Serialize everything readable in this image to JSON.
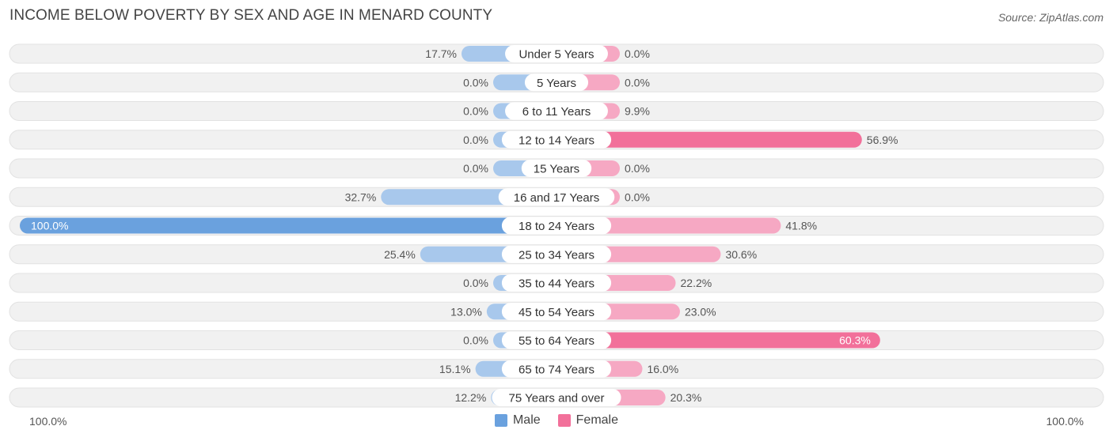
{
  "header": {
    "title": "INCOME BELOW POVERTY BY SEX AND AGE IN MENARD COUNTY",
    "source": "Source: ZipAtlas.com"
  },
  "axis": {
    "left_label": "100.0%",
    "right_label": "100.0%"
  },
  "legend": {
    "male_label": "Male",
    "female_label": "Female"
  },
  "colors": {
    "male_strong": "#6aa1de",
    "male_light": "#a8c8ec",
    "female_strong": "#f2709a",
    "female_light": "#f6a8c3",
    "row_bg": "#efefef"
  },
  "chart_data": {
    "type": "bar",
    "orientation": "horizontal-diverging",
    "title": "INCOME BELOW POVERTY BY SEX AND AGE IN MENARD COUNTY",
    "xlim": [
      -100,
      100
    ],
    "categories": [
      "Under 5 Years",
      "5 Years",
      "6 to 11 Years",
      "12 to 14 Years",
      "15 Years",
      "16 and 17 Years",
      "18 to 24 Years",
      "25 to 34 Years",
      "35 to 44 Years",
      "45 to 54 Years",
      "55 to 64 Years",
      "65 to 74 Years",
      "75 Years and over"
    ],
    "series": [
      {
        "name": "Male",
        "values": [
          17.7,
          0.0,
          0.0,
          0.0,
          0.0,
          32.7,
          100.0,
          25.4,
          0.0,
          13.0,
          0.0,
          15.1,
          12.2
        ],
        "labels": [
          "17.7%",
          "0.0%",
          "0.0%",
          "0.0%",
          "0.0%",
          "32.7%",
          "100.0%",
          "25.4%",
          "0.0%",
          "13.0%",
          "0.0%",
          "15.1%",
          "12.2%"
        ]
      },
      {
        "name": "Female",
        "values": [
          0.0,
          0.0,
          9.9,
          56.9,
          0.0,
          0.0,
          41.8,
          30.6,
          22.2,
          23.0,
          60.3,
          16.0,
          20.3
        ],
        "labels": [
          "0.0%",
          "0.0%",
          "9.9%",
          "56.9%",
          "0.0%",
          "0.0%",
          "41.8%",
          "30.6%",
          "22.2%",
          "23.0%",
          "60.3%",
          "16.0%",
          "20.3%"
        ]
      }
    ]
  }
}
